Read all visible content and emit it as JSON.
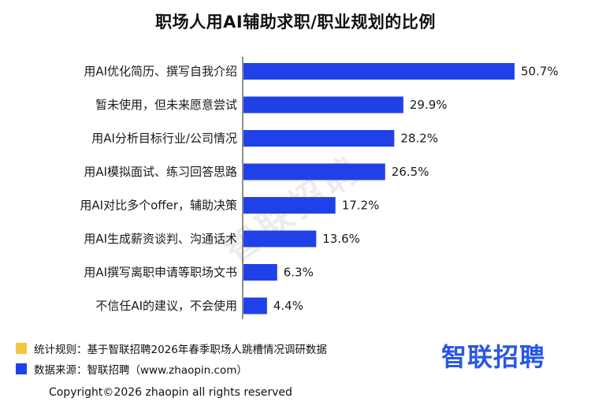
{
  "title": "职场人用AI辅助求职/职业规划的比例",
  "chart_data": {
    "type": "bar",
    "orientation": "horizontal",
    "categories": [
      "用AI优化简历、撰写自我介绍",
      "暂未使用，但未来愿意尝试",
      "用AI分析目标行业/公司情况",
      "用AI模拟面试、练习回答思路",
      "用AI对比多个offer，辅助决策",
      "用AI生成薪资谈判、沟通话术",
      "用AI撰写离职申请等职场文书",
      "不信任AI的建议，不会使用"
    ],
    "values": [
      50.7,
      29.9,
      28.2,
      26.5,
      17.2,
      13.6,
      6.3,
      4.4
    ],
    "value_labels": [
      "50.7%",
      "29.9%",
      "28.2%",
      "26.5%",
      "17.2%",
      "13.6%",
      "6.3%",
      "4.4%"
    ],
    "xlim": [
      0,
      55
    ],
    "bar_color": "#2141e8",
    "grid": false
  },
  "watermark": "智联招聘",
  "legend": [
    {
      "label": "统计规则：基于智联招聘2026年春季职场人跳槽情况调研数据",
      "color": "#f5c542"
    },
    {
      "label": "数据来源：智联招聘（www.zhaopin.com）",
      "color": "#2141e8"
    }
  ],
  "brand": "智联招聘",
  "copyright": "Copyright©2026 zhaopin all rights reserved"
}
